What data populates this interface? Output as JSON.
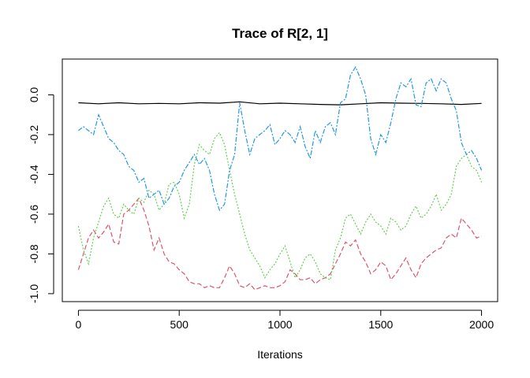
{
  "chart_data": {
    "type": "line",
    "title": "Trace of R[2, 1]",
    "xlabel": "Iterations",
    "ylabel": "",
    "xlim": [
      -80,
      2080
    ],
    "ylim": [
      -1.04,
      0.18
    ],
    "x_ticks": [
      0,
      500,
      1000,
      1500,
      2000
    ],
    "x_tick_labels": [
      "0",
      "500",
      "1000",
      "1500",
      "2000"
    ],
    "y_ticks": [
      -1.0,
      -0.8,
      -0.6,
      -0.4,
      -0.2,
      0.0
    ],
    "y_tick_labels": [
      "-1.0",
      "-0.8",
      "-0.6",
      "-0.4",
      "-0.2",
      "0.0"
    ],
    "grid": false,
    "legend": "none",
    "series": [
      {
        "color": "#000000",
        "dash": "solid",
        "x": [
          0,
          100,
          200,
          300,
          400,
          500,
          600,
          700,
          800,
          900,
          1000,
          1100,
          1200,
          1300,
          1400,
          1500,
          1600,
          1700,
          1800,
          1900,
          2000
        ],
        "y": [
          -0.04,
          -0.045,
          -0.04,
          -0.045,
          -0.043,
          -0.045,
          -0.04,
          -0.042,
          -0.035,
          -0.045,
          -0.042,
          -0.045,
          -0.048,
          -0.05,
          -0.045,
          -0.04,
          -0.042,
          -0.043,
          -0.045,
          -0.048,
          -0.043
        ]
      },
      {
        "color": "#DF536B",
        "dash": "6,3",
        "x": [
          0,
          25,
          50,
          75,
          100,
          125,
          150,
          175,
          200,
          225,
          250,
          275,
          300,
          325,
          350,
          375,
          400,
          425,
          450,
          475,
          500,
          525,
          550,
          575,
          600,
          625,
          650,
          675,
          700,
          725,
          750,
          775,
          800,
          825,
          850,
          875,
          900,
          925,
          950,
          975,
          1000,
          1025,
          1050,
          1075,
          1100,
          1125,
          1150,
          1175,
          1200,
          1225,
          1250,
          1275,
          1300,
          1325,
          1350,
          1375,
          1400,
          1425,
          1450,
          1475,
          1500,
          1525,
          1550,
          1575,
          1600,
          1625,
          1650,
          1675,
          1700,
          1725,
          1750,
          1775,
          1800,
          1825,
          1850,
          1875,
          1900,
          1925,
          1950,
          1975,
          2000
        ],
        "y": [
          -0.88,
          -0.8,
          -0.72,
          -0.68,
          -0.72,
          -0.69,
          -0.65,
          -0.74,
          -0.75,
          -0.6,
          -0.58,
          -0.55,
          -0.52,
          -0.58,
          -0.66,
          -0.78,
          -0.72,
          -0.8,
          -0.84,
          -0.85,
          -0.88,
          -0.9,
          -0.94,
          -0.95,
          -0.95,
          -0.97,
          -0.96,
          -0.97,
          -0.97,
          -0.92,
          -0.86,
          -0.9,
          -0.96,
          -0.97,
          -0.95,
          -0.98,
          -0.97,
          -0.96,
          -0.97,
          -0.97,
          -0.96,
          -0.94,
          -0.88,
          -0.9,
          -0.93,
          -0.93,
          -0.92,
          -0.95,
          -0.93,
          -0.92,
          -0.9,
          -0.85,
          -0.8,
          -0.74,
          -0.76,
          -0.73,
          -0.8,
          -0.84,
          -0.9,
          -0.88,
          -0.84,
          -0.86,
          -0.93,
          -0.9,
          -0.86,
          -0.82,
          -0.88,
          -0.92,
          -0.85,
          -0.82,
          -0.8,
          -0.78,
          -0.77,
          -0.72,
          -0.7,
          -0.72,
          -0.62,
          -0.65,
          -0.68,
          -0.72,
          -0.71
        ]
      },
      {
        "color": "#61D04F",
        "dash": "2,2",
        "x": [
          0,
          25,
          50,
          75,
          100,
          125,
          150,
          175,
          200,
          225,
          250,
          275,
          300,
          325,
          350,
          375,
          400,
          425,
          450,
          475,
          500,
          525,
          550,
          575,
          600,
          625,
          650,
          675,
          700,
          725,
          750,
          775,
          800,
          825,
          850,
          875,
          900,
          925,
          950,
          975,
          1000,
          1025,
          1050,
          1075,
          1100,
          1125,
          1150,
          1175,
          1200,
          1225,
          1250,
          1275,
          1300,
          1325,
          1350,
          1375,
          1400,
          1425,
          1450,
          1475,
          1500,
          1525,
          1550,
          1575,
          1600,
          1625,
          1650,
          1675,
          1700,
          1725,
          1750,
          1775,
          1800,
          1825,
          1850,
          1875,
          1900,
          1925,
          1950,
          1975,
          2000
        ],
        "y": [
          -0.66,
          -0.78,
          -0.85,
          -0.72,
          -0.64,
          -0.56,
          -0.52,
          -0.6,
          -0.62,
          -0.55,
          -0.58,
          -0.6,
          -0.52,
          -0.54,
          -0.48,
          -0.5,
          -0.58,
          -0.55,
          -0.45,
          -0.44,
          -0.5,
          -0.62,
          -0.55,
          -0.35,
          -0.25,
          -0.28,
          -0.3,
          -0.22,
          -0.19,
          -0.25,
          -0.38,
          -0.5,
          -0.6,
          -0.7,
          -0.78,
          -0.82,
          -0.86,
          -0.92,
          -0.88,
          -0.85,
          -0.8,
          -0.76,
          -0.84,
          -0.92,
          -0.88,
          -0.82,
          -0.8,
          -0.84,
          -0.9,
          -0.92,
          -0.93,
          -0.78,
          -0.72,
          -0.62,
          -0.6,
          -0.65,
          -0.7,
          -0.64,
          -0.6,
          -0.64,
          -0.66,
          -0.7,
          -0.62,
          -0.64,
          -0.68,
          -0.66,
          -0.6,
          -0.56,
          -0.62,
          -0.6,
          -0.56,
          -0.5,
          -0.58,
          -0.55,
          -0.5,
          -0.36,
          -0.32,
          -0.3,
          -0.36,
          -0.38,
          -0.44
        ]
      },
      {
        "color": "#2297E6",
        "dash": "6,2,2,2",
        "x": [
          0,
          25,
          50,
          75,
          100,
          125,
          150,
          175,
          200,
          225,
          250,
          275,
          300,
          325,
          350,
          375,
          400,
          425,
          450,
          475,
          500,
          525,
          550,
          575,
          600,
          625,
          650,
          675,
          700,
          725,
          750,
          775,
          800,
          825,
          850,
          875,
          900,
          925,
          950,
          975,
          1000,
          1025,
          1050,
          1075,
          1100,
          1125,
          1150,
          1175,
          1200,
          1225,
          1250,
          1275,
          1300,
          1325,
          1350,
          1375,
          1400,
          1425,
          1450,
          1475,
          1500,
          1525,
          1550,
          1575,
          1600,
          1625,
          1650,
          1675,
          1700,
          1725,
          1750,
          1775,
          1800,
          1825,
          1850,
          1875,
          1900,
          1925,
          1950,
          1975,
          2000
        ],
        "y": [
          -0.18,
          -0.16,
          -0.18,
          -0.2,
          -0.1,
          -0.16,
          -0.22,
          -0.24,
          -0.28,
          -0.3,
          -0.36,
          -0.38,
          -0.44,
          -0.42,
          -0.52,
          -0.5,
          -0.48,
          -0.55,
          -0.52,
          -0.46,
          -0.44,
          -0.38,
          -0.34,
          -0.3,
          -0.35,
          -0.32,
          -0.38,
          -0.5,
          -0.58,
          -0.55,
          -0.38,
          -0.3,
          -0.04,
          -0.18,
          -0.3,
          -0.22,
          -0.2,
          -0.18,
          -0.15,
          -0.25,
          -0.22,
          -0.18,
          -0.2,
          -0.24,
          -0.16,
          -0.26,
          -0.32,
          -0.18,
          -0.24,
          -0.16,
          -0.14,
          -0.2,
          -0.04,
          -0.02,
          0.1,
          0.14,
          0.08,
          0.0,
          -0.22,
          -0.3,
          -0.2,
          -0.24,
          -0.14,
          -0.02,
          0.06,
          0.04,
          0.08,
          -0.05,
          -0.06,
          0.06,
          0.08,
          0.02,
          0.08,
          0.06,
          -0.02,
          -0.08,
          -0.24,
          -0.3,
          -0.28,
          -0.32,
          -0.38
        ]
      }
    ]
  }
}
